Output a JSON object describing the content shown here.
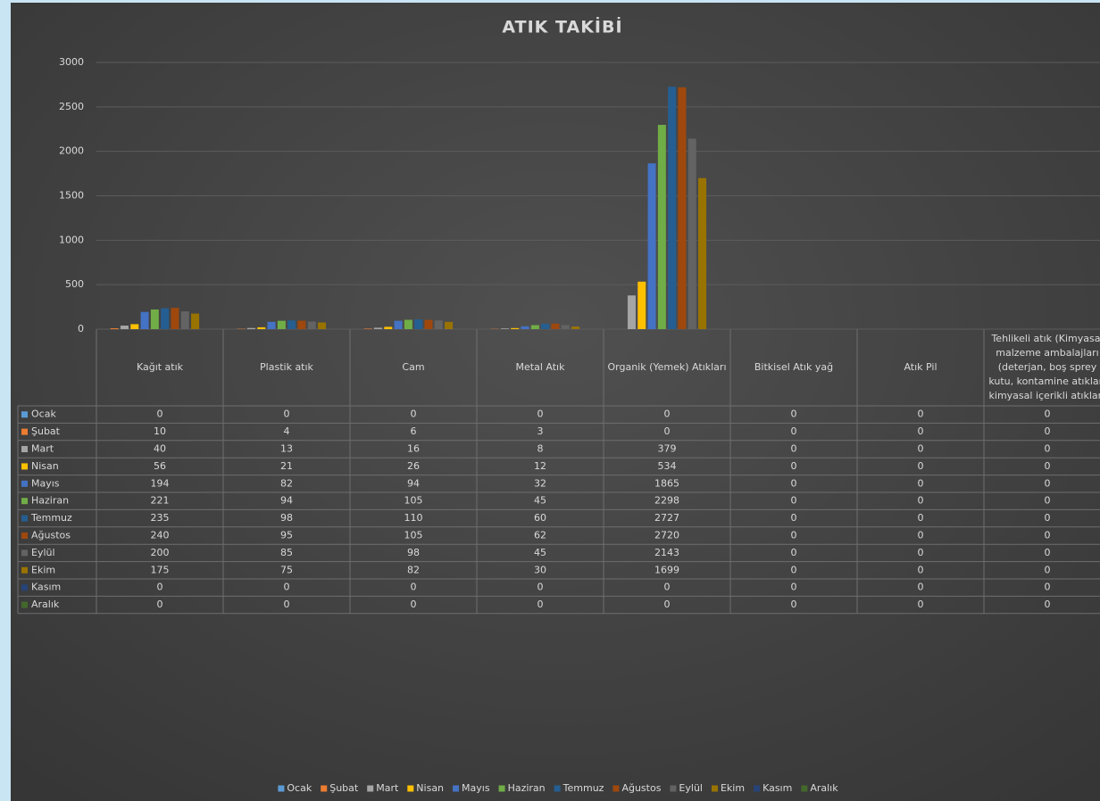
{
  "chart_data": {
    "type": "bar",
    "title": "ATIK TAKİBİ",
    "categories": [
      "Kağıt atık",
      "Plastik atık",
      "Cam",
      "Metal Atık",
      "Organik (Yemek) Atıkları",
      "Bitkisel Atık yağ",
      "Atık Pil",
      "Tehlikeli atık (Kimyasal malzeme ambalajları (deterjan, boş sprey kutu, kontamine atıklar, kimyasal içerikli atıklar)"
    ],
    "series": [
      {
        "name": "Ocak",
        "color": "#5b9bd5",
        "values": [
          0,
          0,
          0,
          0,
          0,
          0,
          0,
          0
        ]
      },
      {
        "name": "Şubat",
        "color": "#ed7d31",
        "values": [
          10,
          4,
          6,
          3,
          0,
          0,
          0,
          0
        ]
      },
      {
        "name": "Mart",
        "color": "#a5a5a5",
        "values": [
          40,
          13,
          16,
          8,
          379,
          0,
          0,
          0
        ]
      },
      {
        "name": "Nisan",
        "color": "#ffc000",
        "values": [
          56,
          21,
          26,
          12,
          534,
          0,
          0,
          0
        ]
      },
      {
        "name": "Mayıs",
        "color": "#4472c4",
        "values": [
          194,
          82,
          94,
          32,
          1865,
          0,
          0,
          0
        ]
      },
      {
        "name": "Haziran",
        "color": "#70ad47",
        "values": [
          221,
          94,
          105,
          45,
          2298,
          0,
          0,
          0
        ]
      },
      {
        "name": "Temmuz",
        "color": "#255e91",
        "values": [
          235,
          98,
          110,
          60,
          2727,
          0,
          0,
          0
        ]
      },
      {
        "name": "Ağustos",
        "color": "#9e480e",
        "values": [
          240,
          95,
          105,
          62,
          2720,
          0,
          0,
          0
        ]
      },
      {
        "name": "Eylül",
        "color": "#636363",
        "values": [
          200,
          85,
          98,
          45,
          2143,
          0,
          0,
          0
        ]
      },
      {
        "name": "Ekim",
        "color": "#997300",
        "values": [
          175,
          75,
          82,
          30,
          1699,
          0,
          0,
          0
        ]
      },
      {
        "name": "Kasım",
        "color": "#264478",
        "values": [
          0,
          0,
          0,
          0,
          0,
          0,
          0,
          0
        ]
      },
      {
        "name": "Aralık",
        "color": "#43682b",
        "values": [
          0,
          0,
          0,
          0,
          0,
          0,
          0,
          0
        ]
      }
    ],
    "ylim": [
      0,
      3000
    ],
    "yticks": [
      0,
      500,
      1000,
      1500,
      2000,
      2500,
      3000
    ],
    "grid": true,
    "data_table": true,
    "legend": "bottom"
  }
}
